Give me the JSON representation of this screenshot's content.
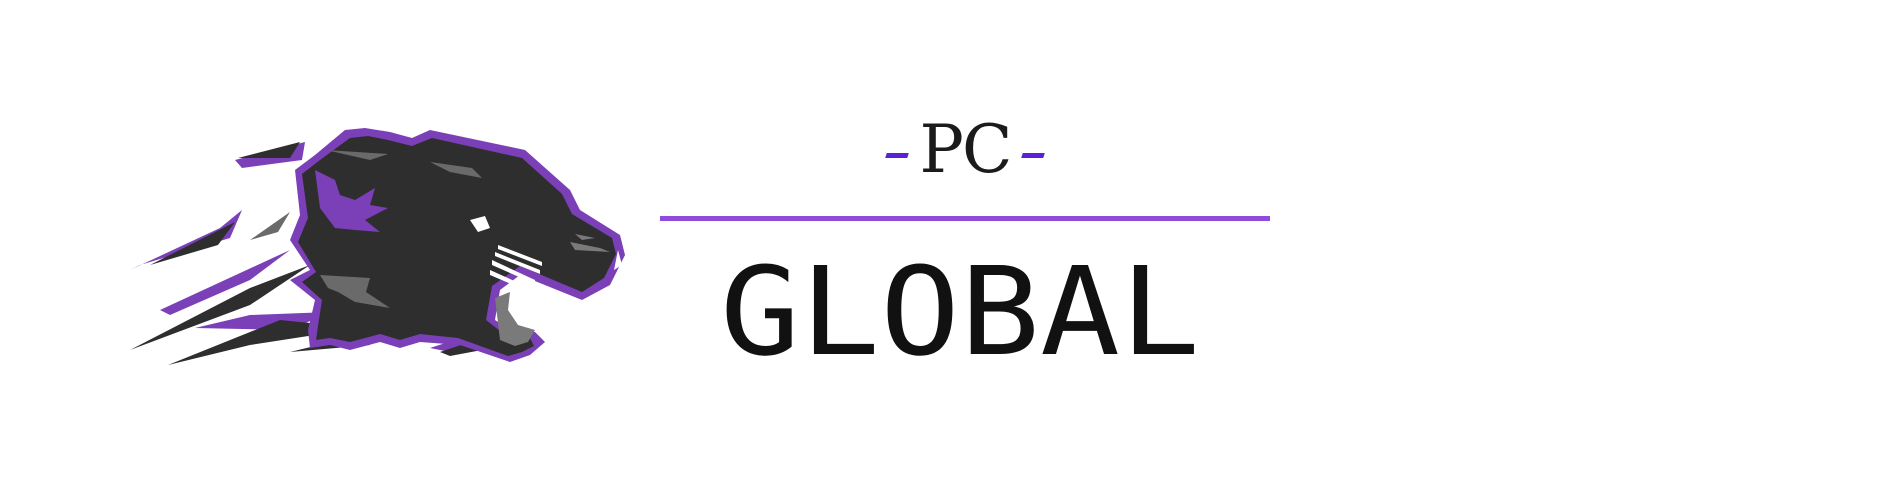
{
  "logo": {
    "brand_top": "PC",
    "brand_bottom": "GLOBAL",
    "mascot_icon": "panther-head-icon",
    "colors": {
      "accent_purple": "#7b3fb8",
      "divider_purple": "#8e4bdc",
      "dash_purple": "#5b21d6",
      "panther_dark": "#2e2e2e",
      "panther_gray": "#7a7a7a",
      "text_dark": "#111111"
    }
  }
}
